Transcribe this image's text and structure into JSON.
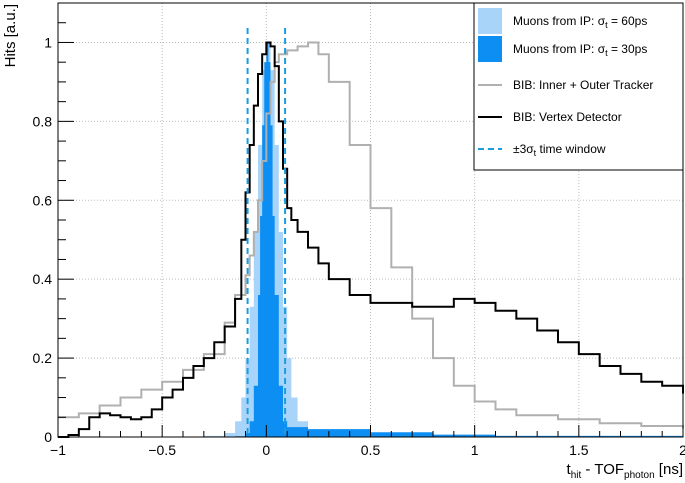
{
  "chart_data": {
    "type": "line",
    "xlabel": {
      "main": "t",
      "sub1": "hit",
      "mid": " - TOF",
      "sub2": "photon",
      "unit": " [ns]"
    },
    "ylabel": "Hits [a.u.]",
    "xlim": [
      -1,
      2
    ],
    "ylim": [
      0,
      1.1
    ],
    "x_ticks": [
      -1,
      -0.5,
      0,
      0.5,
      1,
      1.5,
      2
    ],
    "x_tick_labels": [
      "−1",
      "−0.5",
      "0",
      "0.5",
      "1",
      "1.5",
      "2"
    ],
    "y_ticks": [
      0,
      0.2,
      0.4,
      0.6,
      0.8,
      1
    ],
    "y_tick_labels": [
      "0",
      "0.2",
      "0.4",
      "0.6",
      "0.8",
      "1"
    ],
    "grid": true,
    "legend_position": "top-right",
    "series": [
      {
        "key": "mu60",
        "name": "Muons from IP: σt = 60ps",
        "legend_label": {
          "main": "Muons from IP: σ",
          "sub": "t",
          "tail": " = 60ps"
        },
        "style": "filled-histogram",
        "color": "#a8d4fa",
        "x": [
          -1.0,
          -0.3,
          -0.2,
          -0.15,
          -0.12,
          -0.1,
          -0.08,
          -0.06,
          -0.04,
          -0.02,
          0.0,
          0.02,
          0.04,
          0.06,
          0.08,
          0.1,
          0.12,
          0.15,
          0.2,
          0.3,
          2.0
        ],
        "y": [
          0.0,
          0.003,
          0.01,
          0.04,
          0.1,
          0.2,
          0.33,
          0.52,
          0.74,
          0.93,
          1.0,
          0.93,
          0.74,
          0.52,
          0.33,
          0.2,
          0.1,
          0.04,
          0.01,
          0.003,
          0.0
        ]
      },
      {
        "key": "mu30",
        "name": "Muons from IP: σt = 30ps",
        "legend_label": {
          "main": "Muons from IP: σ",
          "sub": "t",
          "tail": " = 30ps"
        },
        "style": "filled-histogram",
        "color": "#0d8ef2",
        "x": [
          -1.0,
          -0.15,
          -0.1,
          -0.08,
          -0.06,
          -0.04,
          -0.03,
          -0.02,
          -0.01,
          0.0,
          0.01,
          0.02,
          0.03,
          0.04,
          0.06,
          0.08,
          0.1,
          0.2,
          0.5,
          0.8,
          1.1,
          2.0
        ],
        "y": [
          0.0,
          0.002,
          0.01,
          0.04,
          0.13,
          0.36,
          0.56,
          0.79,
          0.95,
          1.0,
          0.95,
          0.79,
          0.56,
          0.36,
          0.13,
          0.04,
          0.025,
          0.02,
          0.012,
          0.006,
          0.003,
          0.002
        ]
      },
      {
        "key": "bib_tracker",
        "name": "BIB:  Inner + Outer Tracker",
        "legend_label": {
          "main": "BIB:  Inner + Outer Tracker",
          "sub": "",
          "tail": ""
        },
        "style": "step",
        "color": "#b0b0b0",
        "x": [
          -1.0,
          -0.9,
          -0.8,
          -0.7,
          -0.6,
          -0.5,
          -0.4,
          -0.3,
          -0.2,
          -0.15,
          -0.1,
          -0.08,
          -0.06,
          -0.04,
          -0.02,
          0.0,
          0.02,
          0.04,
          0.06,
          0.1,
          0.15,
          0.2,
          0.25,
          0.3,
          0.4,
          0.5,
          0.6,
          0.7,
          0.8,
          0.9,
          1.0,
          1.1,
          1.2,
          1.4,
          1.6,
          1.8,
          2.0
        ],
        "y": [
          0.05,
          0.06,
          0.08,
          0.1,
          0.12,
          0.14,
          0.17,
          0.21,
          0.29,
          0.36,
          0.41,
          0.46,
          0.52,
          0.6,
          0.7,
          0.82,
          0.9,
          0.95,
          0.97,
          0.98,
          0.99,
          1.0,
          0.97,
          0.9,
          0.74,
          0.58,
          0.43,
          0.3,
          0.2,
          0.13,
          0.09,
          0.07,
          0.055,
          0.045,
          0.035,
          0.028,
          0.022
        ]
      },
      {
        "key": "bib_vertex",
        "name": "BIB:  Vertex Detector",
        "legend_label": {
          "main": "BIB:  Vertex Detector",
          "sub": "",
          "tail": ""
        },
        "style": "step",
        "color": "#000000",
        "x": [
          -1.0,
          -0.95,
          -0.9,
          -0.85,
          -0.8,
          -0.75,
          -0.7,
          -0.65,
          -0.6,
          -0.55,
          -0.5,
          -0.45,
          -0.4,
          -0.35,
          -0.3,
          -0.25,
          -0.2,
          -0.15,
          -0.12,
          -0.1,
          -0.08,
          -0.06,
          -0.04,
          -0.02,
          0.0,
          0.02,
          0.04,
          0.06,
          0.08,
          0.1,
          0.12,
          0.15,
          0.2,
          0.25,
          0.3,
          0.4,
          0.5,
          0.6,
          0.7,
          0.8,
          0.9,
          1.0,
          1.1,
          1.2,
          1.3,
          1.4,
          1.5,
          1.6,
          1.7,
          1.8,
          1.9,
          2.0
        ],
        "y": [
          0.0,
          0.005,
          0.02,
          0.05,
          0.06,
          0.055,
          0.05,
          0.045,
          0.05,
          0.07,
          0.1,
          0.12,
          0.15,
          0.18,
          0.2,
          0.24,
          0.28,
          0.35,
          0.5,
          0.62,
          0.74,
          0.84,
          0.92,
          0.97,
          1.0,
          0.99,
          0.94,
          0.8,
          0.68,
          0.58,
          0.55,
          0.52,
          0.48,
          0.44,
          0.4,
          0.36,
          0.34,
          0.34,
          0.33,
          0.33,
          0.35,
          0.34,
          0.32,
          0.3,
          0.27,
          0.24,
          0.21,
          0.18,
          0.16,
          0.14,
          0.13,
          0.11
        ]
      },
      {
        "key": "window",
        "name": "±3σt time window",
        "legend_label": {
          "main": "±3σ",
          "sub": "t",
          "tail": " time window"
        },
        "style": "dashed-vline",
        "color": "#1a9de0",
        "x": [
          -0.09,
          0.09
        ]
      }
    ]
  }
}
